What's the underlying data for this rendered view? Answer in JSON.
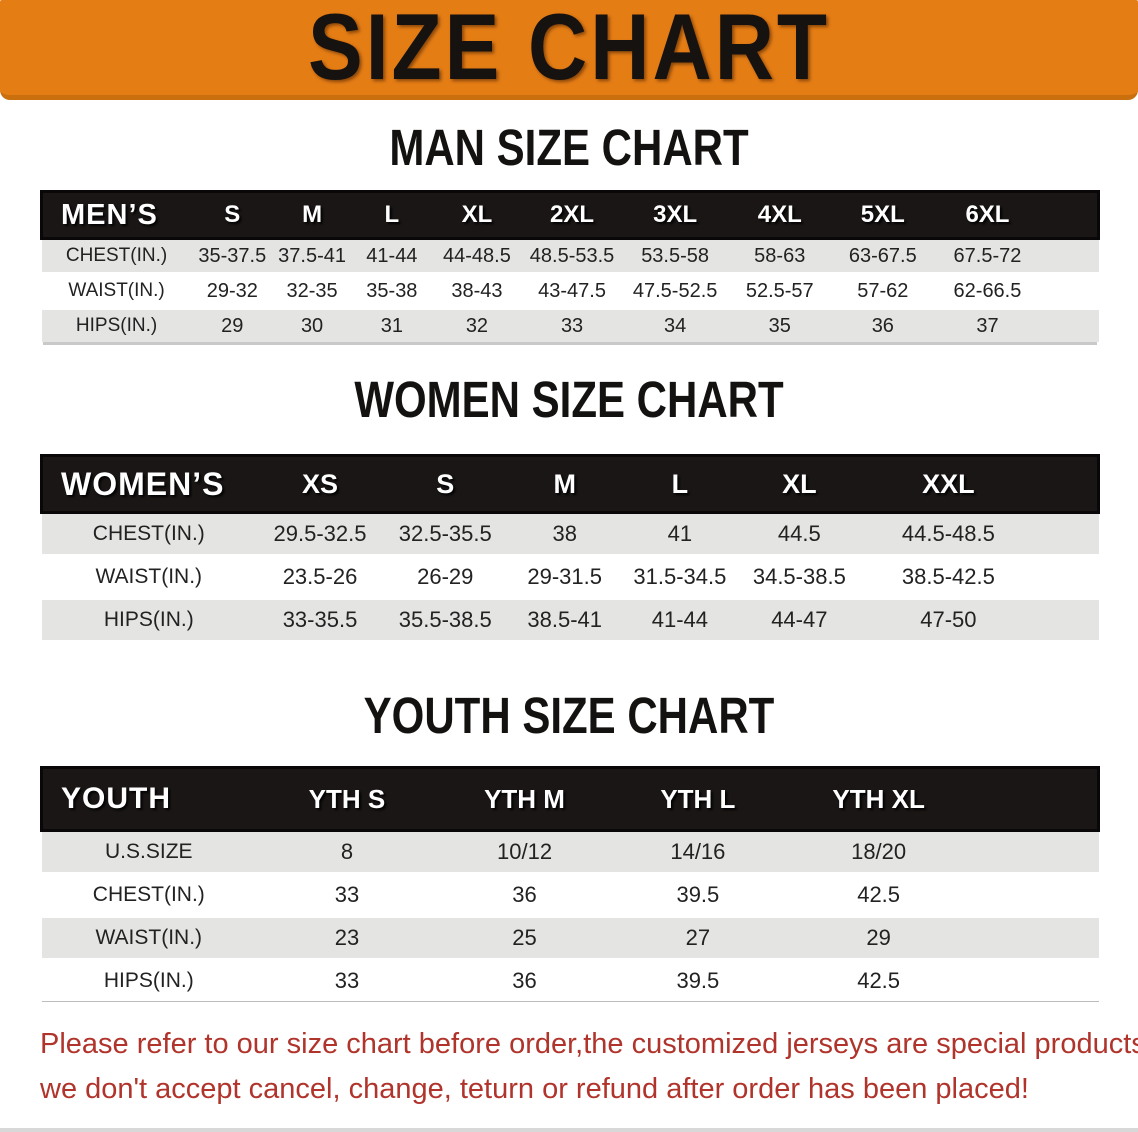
{
  "banner": {
    "title": "SIZE CHART"
  },
  "sections": [
    {
      "heading": "MAN SIZE CHART",
      "corner_label": "MEN’S",
      "sizes": [
        "S",
        "M",
        "L",
        "XL",
        "2XL",
        "3XL",
        "4XL",
        "5XL",
        "6XL"
      ],
      "rows": [
        {
          "label": "CHEST(IN.)",
          "values": [
            "35-37.5",
            "37.5-41",
            "41-44",
            "44-48.5",
            "48.5-53.5",
            "53.5-58",
            "58-63",
            "63-67.5",
            "67.5-72"
          ]
        },
        {
          "label": "WAIST(IN.)",
          "values": [
            "29-32",
            "32-35",
            "35-38",
            "38-43",
            "43-47.5",
            "47.5-52.5",
            "52.5-57",
            "57-62",
            "62-66.5"
          ]
        },
        {
          "label": "HIPS(IN.)",
          "values": [
            "29",
            "30",
            "31",
            "32",
            "33",
            "34",
            "35",
            "36",
            "37"
          ]
        }
      ]
    },
    {
      "heading": "WOMEN SIZE CHART",
      "corner_label": "WOMEN’S",
      "sizes": [
        "XS",
        "S",
        "M",
        "L",
        "XL",
        "XXL"
      ],
      "rows": [
        {
          "label": "CHEST(IN.)",
          "values": [
            "29.5-32.5",
            "32.5-35.5",
            "38",
            "41",
            "44.5",
            "44.5-48.5"
          ]
        },
        {
          "label": "WAIST(IN.)",
          "values": [
            "23.5-26",
            "26-29",
            "29-31.5",
            "31.5-34.5",
            "34.5-38.5",
            "38.5-42.5"
          ]
        },
        {
          "label": "HIPS(IN.)",
          "values": [
            "33-35.5",
            "35.5-38.5",
            "38.5-41",
            "41-44",
            "44-47",
            "47-50"
          ]
        }
      ]
    },
    {
      "heading": "YOUTH SIZE CHART",
      "corner_label": "YOUTH",
      "sizes": [
        "YTH S",
        "YTH M",
        "YTH L",
        "YTH XL"
      ],
      "rows": [
        {
          "label": "U.S.SIZE",
          "values": [
            "8",
            "10/12",
            "14/16",
            "18/20"
          ]
        },
        {
          "label": "CHEST(IN.)",
          "values": [
            "33",
            "36",
            "39.5",
            "42.5"
          ]
        },
        {
          "label": "WAIST(IN.)",
          "values": [
            "23",
            "25",
            "27",
            "29"
          ]
        },
        {
          "label": "HIPS(IN.)",
          "values": [
            "33",
            "36",
            "39.5",
            "42.5"
          ]
        }
      ]
    }
  ],
  "footer": {
    "line1": "Please refer to our size chart before order,the customized jerseys are special products,",
    "line2": "we don't accept cancel, change, teturn or refund after order has been placed!"
  },
  "colors": {
    "banner_bg": "#E57D15",
    "banner_bg_dark_edge": "#C96F0E",
    "banner_text": "#161210",
    "table_header_bg": "#1a1615",
    "table_header_text": "#ffffff",
    "row_stripe_gray": "#E4E4E2",
    "row_stripe_white": "#ffffff",
    "note_text": "#B0342B"
  }
}
